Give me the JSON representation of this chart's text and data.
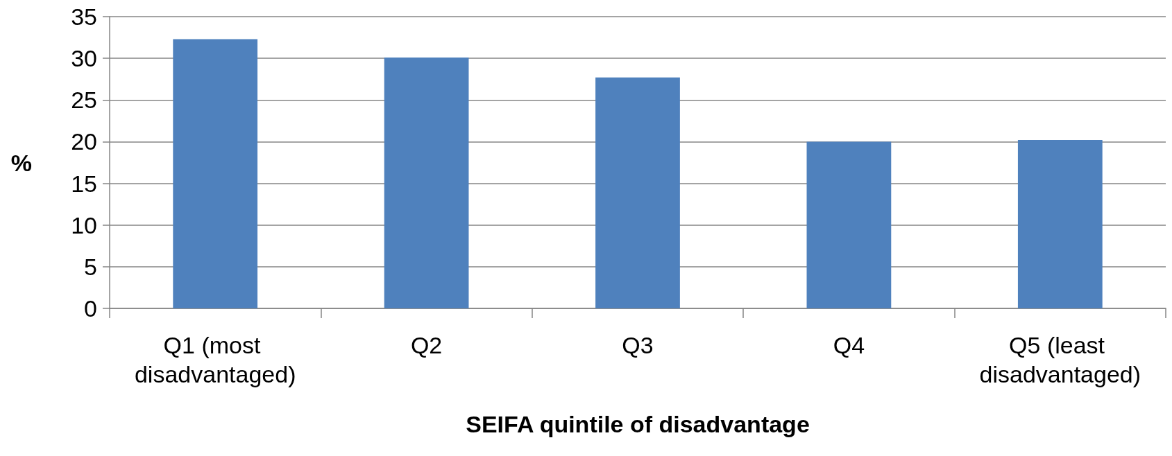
{
  "chart_data": {
    "type": "bar",
    "xlabel": "SEIFA quintile of disadvantage",
    "ylabel": "%",
    "categories": [
      "Q1 (most disadvantaged)",
      "Q2",
      "Q3",
      "Q4",
      "Q5 (least disadvantaged)"
    ],
    "values": [
      32.3,
      30.1,
      27.7,
      20.0,
      20.2
    ],
    "color": "#4f81bd",
    "ylim": [
      0,
      35
    ],
    "yticks": [
      0,
      5,
      10,
      15,
      20,
      25,
      30,
      35
    ],
    "grid": "y"
  }
}
